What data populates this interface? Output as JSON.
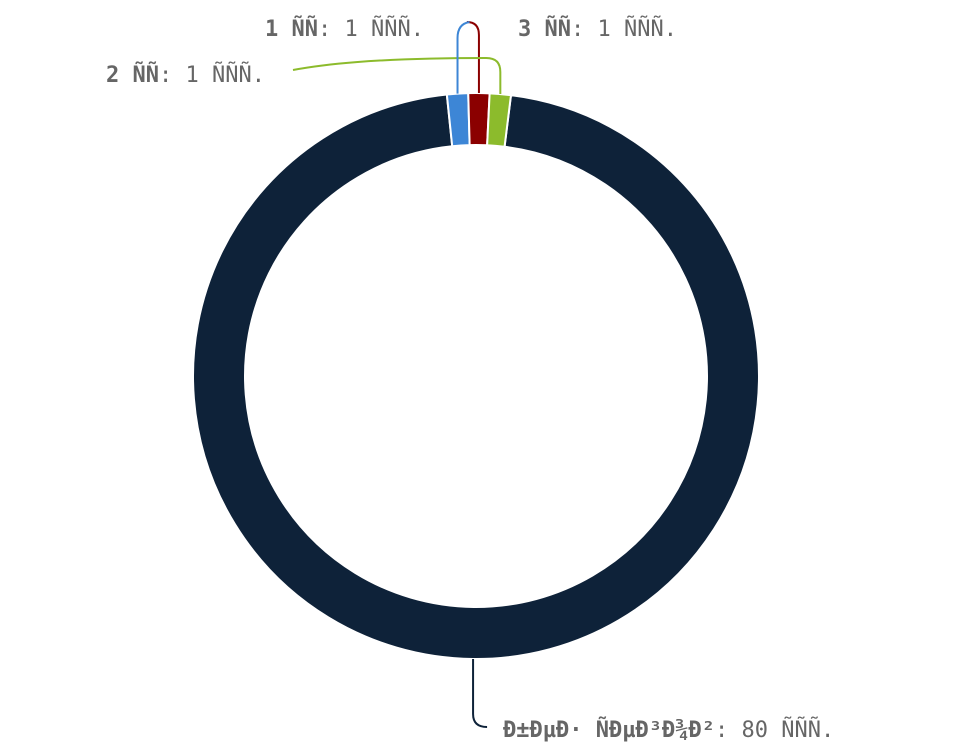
{
  "chart_data": {
    "type": "pie",
    "donut": true,
    "title": "",
    "categories": [
      "Ð±ÐµÐ· ÑÐµÐ³Ð¾Ð²",
      "1 ÑÑ",
      "2 ÑÑ",
      "3 ÑÑ"
    ],
    "values": [
      80,
      1,
      1,
      1
    ],
    "value_labels": [
      "80 ÑÑÑ.",
      "1 ÑÑÑ.",
      "1 ÑÑÑ.",
      "1 ÑÑÑ."
    ],
    "colors": [
      "#0e2239",
      "#8b0000",
      "#8cbb2c",
      "#3d86d6"
    ],
    "legend": "none"
  }
}
